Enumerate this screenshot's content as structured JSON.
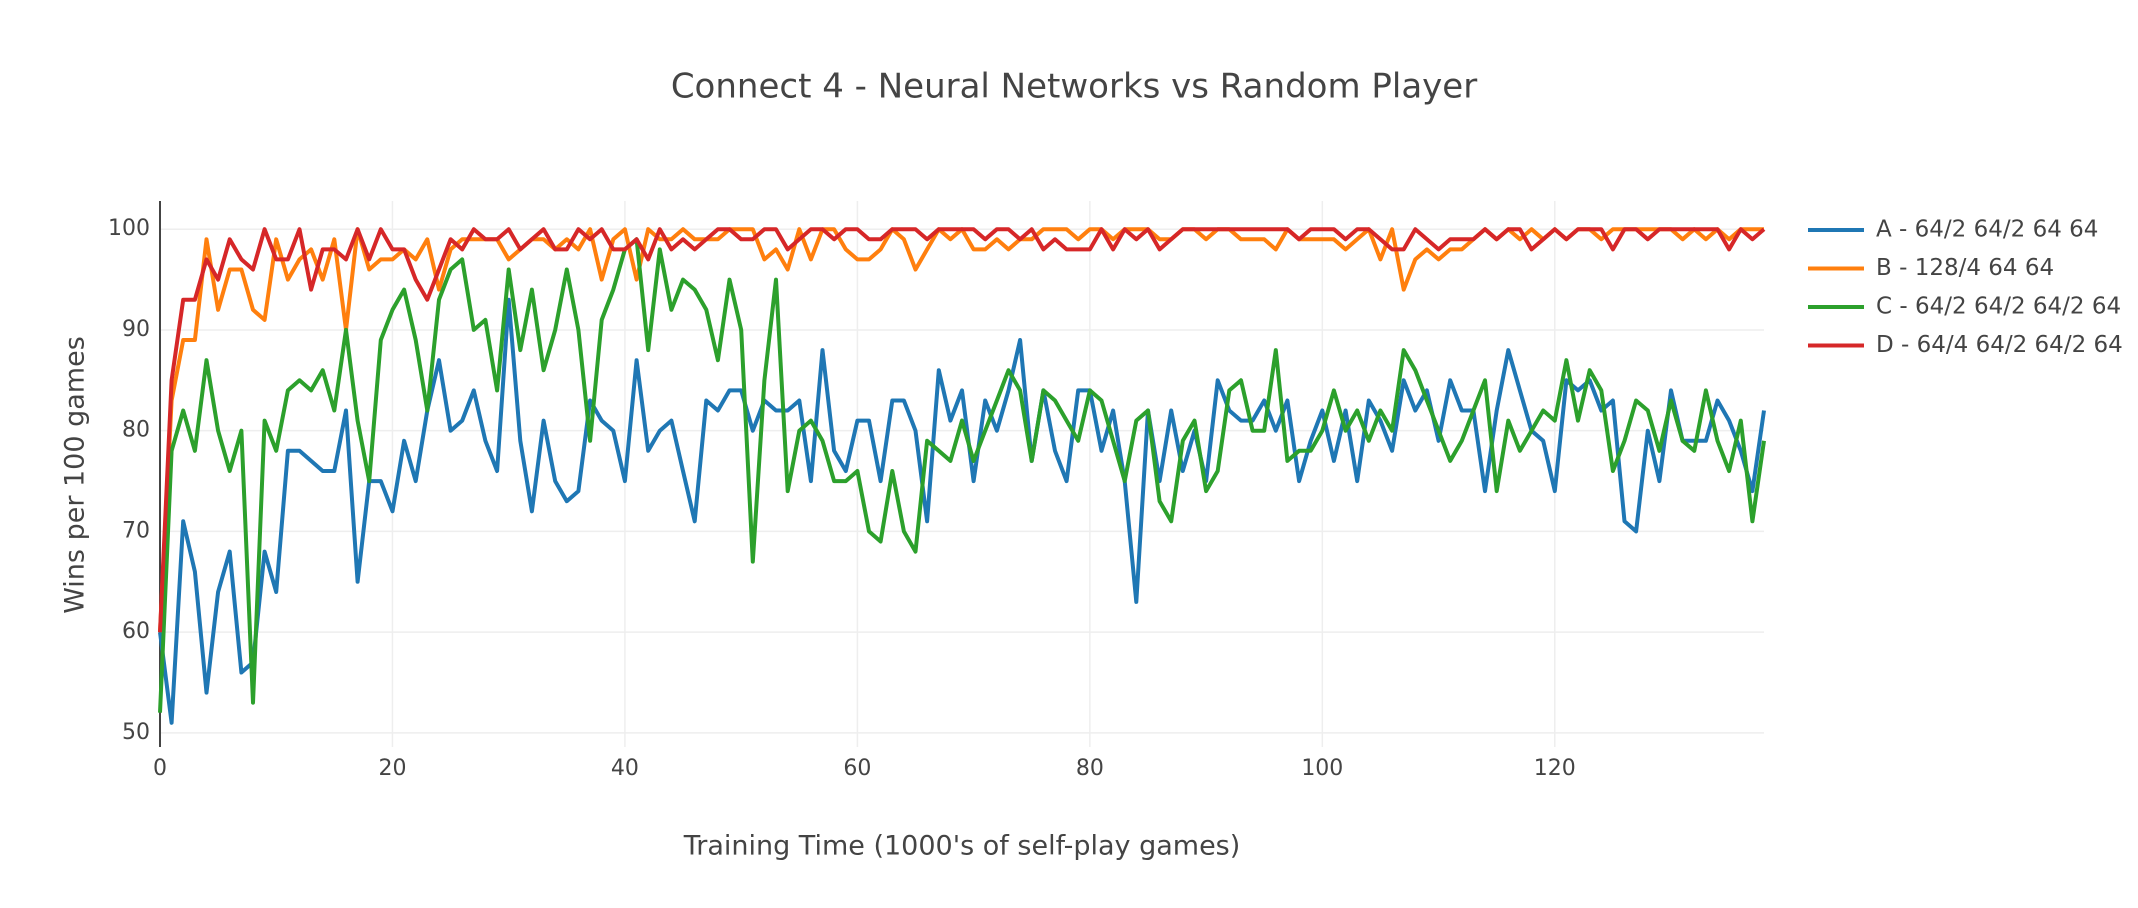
{
  "chart_data": {
    "type": "line",
    "title": "Connect 4 - Neural Networks vs Random Player",
    "x_label": "Training Time (1000's of self-play games)",
    "y_label": "Wins per 100 games",
    "x": [
      0,
      1,
      2,
      3,
      4,
      5,
      6,
      7,
      8,
      9,
      10,
      11,
      12,
      13,
      14,
      15,
      16,
      17,
      18,
      19,
      20,
      21,
      22,
      23,
      24,
      25,
      26,
      27,
      28,
      29,
      30,
      31,
      32,
      33,
      34,
      35,
      36,
      37,
      38,
      39,
      40,
      41,
      42,
      43,
      44,
      45,
      46,
      47,
      48,
      49,
      50,
      51,
      52,
      53,
      54,
      55,
      56,
      57,
      58,
      59,
      60,
      61,
      62,
      63,
      64,
      65,
      66,
      67,
      68,
      69,
      70,
      71,
      72,
      73,
      74,
      75,
      76,
      77,
      78,
      79,
      80,
      81,
      82,
      83,
      84,
      85,
      86,
      87,
      88,
      89,
      90,
      91,
      92,
      93,
      94,
      95,
      96,
      97,
      98,
      99,
      100,
      101,
      102,
      103,
      104,
      105,
      106,
      107,
      108,
      109,
      110,
      111,
      112,
      113,
      114,
      115,
      116,
      117,
      118,
      119,
      120,
      121,
      122,
      123,
      124,
      125,
      126,
      127,
      128,
      129,
      130,
      131,
      132,
      133,
      134,
      135,
      136,
      137,
      138
    ],
    "series": [
      {
        "name": "A - 64/2 64/2 64 64",
        "color": "#1f77b4",
        "values": [
          60,
          51,
          71,
          66,
          54,
          64,
          68,
          56,
          57,
          68,
          64,
          78,
          78,
          77,
          76,
          76,
          82,
          65,
          75,
          75,
          72,
          79,
          75,
          82,
          87,
          80,
          81,
          84,
          79,
          76,
          93,
          79,
          72,
          81,
          75,
          73,
          74,
          83,
          81,
          80,
          75,
          87,
          78,
          80,
          81,
          76,
          71,
          83,
          82,
          84,
          84,
          80,
          83,
          82,
          82,
          83,
          75,
          88,
          78,
          76,
          81,
          81,
          75,
          83,
          83,
          80,
          71,
          86,
          81,
          84,
          75,
          83,
          80,
          84,
          89,
          77,
          84,
          78,
          75,
          84,
          84,
          78,
          82,
          75,
          63,
          82,
          75,
          82,
          76,
          80,
          75,
          85,
          82,
          81,
          81,
          83,
          80,
          83,
          75,
          79,
          82,
          77,
          82,
          75,
          83,
          81,
          78,
          85,
          82,
          84,
          79,
          85,
          82,
          82,
          74,
          82,
          88,
          84,
          80,
          79,
          74,
          85,
          84,
          85,
          82,
          83,
          71,
          70,
          80,
          75,
          84,
          79,
          79,
          79,
          83,
          81,
          78,
          74,
          82
        ]
      },
      {
        "name": "B - 128/4 64 64",
        "color": "#ff7f0e",
        "values": [
          60,
          83,
          89,
          89,
          99,
          92,
          96,
          96,
          92,
          91,
          99,
          95,
          97,
          98,
          95,
          99,
          90,
          100,
          96,
          97,
          97,
          98,
          97,
          99,
          94,
          98,
          99,
          99,
          99,
          99,
          97,
          98,
          99,
          99,
          98,
          99,
          98,
          100,
          95,
          99,
          100,
          95,
          100,
          99,
          99,
          100,
          99,
          99,
          99,
          100,
          100,
          100,
          97,
          98,
          96,
          100,
          97,
          100,
          100,
          98,
          97,
          97,
          98,
          100,
          99,
          96,
          98,
          100,
          99,
          100,
          98,
          98,
          99,
          98,
          99,
          99,
          100,
          100,
          100,
          99,
          100,
          100,
          99,
          100,
          100,
          100,
          99,
          99,
          100,
          100,
          99,
          100,
          100,
          99,
          99,
          99,
          98,
          100,
          99,
          99,
          99,
          99,
          98,
          99,
          100,
          97,
          100,
          94,
          97,
          98,
          97,
          98,
          98,
          99,
          100,
          99,
          100,
          99,
          100,
          99,
          100,
          99,
          100,
          100,
          99,
          100,
          100,
          100,
          100,
          100,
          100,
          99,
          100,
          99,
          100,
          99,
          100,
          100,
          100
        ]
      },
      {
        "name": "C - 64/2 64/2 64/2 64",
        "color": "#2ca02c",
        "values": [
          52,
          78,
          82,
          78,
          87,
          80,
          76,
          80,
          53,
          81,
          78,
          84,
          85,
          84,
          86,
          82,
          90,
          81,
          75,
          89,
          92,
          94,
          89,
          82,
          93,
          96,
          97,
          90,
          91,
          84,
          96,
          88,
          94,
          86,
          90,
          96,
          90,
          79,
          91,
          94,
          98,
          99,
          88,
          98,
          92,
          95,
          94,
          92,
          87,
          95,
          90,
          67,
          85,
          95,
          74,
          80,
          81,
          79,
          75,
          75,
          76,
          70,
          69,
          76,
          70,
          68,
          79,
          78,
          77,
          81,
          77,
          80,
          83,
          86,
          84,
          77,
          84,
          83,
          81,
          79,
          84,
          83,
          79,
          75,
          81,
          82,
          73,
          71,
          79,
          81,
          74,
          76,
          84,
          85,
          80,
          80,
          88,
          77,
          78,
          78,
          80,
          84,
          80,
          82,
          79,
          82,
          80,
          88,
          86,
          83,
          80,
          77,
          79,
          82,
          85,
          74,
          81,
          78,
          80,
          82,
          81,
          87,
          81,
          86,
          84,
          76,
          79,
          83,
          82,
          78,
          83,
          79,
          78,
          84,
          79,
          76,
          81,
          71,
          79
        ]
      },
      {
        "name": "D - 64/4 64/2 64/2 64",
        "color": "#d62728",
        "values": [
          60,
          85,
          93,
          93,
          97,
          95,
          99,
          97,
          96,
          100,
          97,
          97,
          100,
          94,
          98,
          98,
          97,
          100,
          97,
          100,
          98,
          98,
          95,
          93,
          96,
          99,
          98,
          100,
          99,
          99,
          100,
          98,
          99,
          100,
          98,
          98,
          100,
          99,
          100,
          98,
          98,
          99,
          97,
          100,
          98,
          99,
          98,
          99,
          100,
          100,
          99,
          99,
          100,
          100,
          98,
          99,
          100,
          100,
          99,
          100,
          100,
          99,
          99,
          100,
          100,
          100,
          99,
          100,
          100,
          100,
          100,
          99,
          100,
          100,
          99,
          100,
          98,
          99,
          98,
          98,
          98,
          100,
          98,
          100,
          99,
          100,
          98,
          99,
          100,
          100,
          100,
          100,
          100,
          100,
          100,
          100,
          100,
          100,
          99,
          100,
          100,
          100,
          99,
          100,
          100,
          99,
          98,
          98,
          100,
          99,
          98,
          99,
          99,
          99,
          100,
          99,
          100,
          100,
          98,
          99,
          100,
          99,
          100,
          100,
          100,
          98,
          100,
          100,
          99,
          100,
          100,
          100,
          100,
          100,
          100,
          98,
          100,
          99,
          100
        ]
      }
    ],
    "xlim": [
      0,
      138
    ],
    "xticks": [
      0,
      20,
      40,
      60,
      80,
      100,
      120
    ],
    "ylim": [
      48.6,
      102.8
    ],
    "yticks": [
      50,
      60,
      70,
      80,
      90,
      100
    ],
    "grid": true,
    "legend": "right"
  }
}
